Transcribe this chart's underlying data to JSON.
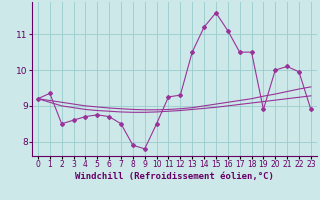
{
  "x": [
    0,
    1,
    2,
    3,
    4,
    5,
    6,
    7,
    8,
    9,
    10,
    11,
    12,
    13,
    14,
    15,
    16,
    17,
    18,
    19,
    20,
    21,
    22,
    23
  ],
  "y_line": [
    9.2,
    9.35,
    8.5,
    8.6,
    8.7,
    8.75,
    8.7,
    8.5,
    7.9,
    7.8,
    8.5,
    9.25,
    9.3,
    10.5,
    11.2,
    11.6,
    11.1,
    10.5,
    10.5,
    8.9,
    10.0,
    10.1,
    9.95,
    8.9
  ],
  "y_trend1": [
    9.2,
    9.15,
    9.1,
    9.05,
    9.0,
    8.97,
    8.94,
    8.92,
    8.9,
    8.89,
    8.89,
    8.9,
    8.92,
    8.95,
    9.0,
    9.05,
    9.1,
    9.15,
    9.2,
    9.27,
    9.33,
    9.4,
    9.47,
    9.53
  ],
  "y_trend2": [
    9.2,
    9.1,
    9.0,
    8.95,
    8.9,
    8.87,
    8.85,
    8.83,
    8.82,
    8.82,
    8.83,
    8.85,
    8.87,
    8.9,
    8.93,
    8.96,
    9.0,
    9.04,
    9.08,
    9.12,
    9.16,
    9.2,
    9.24,
    9.28
  ],
  "background_color": "#cce8e8",
  "line_color": "#993399",
  "grid_color": "#99cccc",
  "ylabel_values": [
    8,
    9,
    10,
    11
  ],
  "xlabel": "Windchill (Refroidissement éolien,°C)",
  "ylim": [
    7.6,
    11.9
  ],
  "xlim": [
    -0.5,
    23.5
  ],
  "tick_labels": [
    "0",
    "1",
    "2",
    "3",
    "4",
    "5",
    "6",
    "7",
    "8",
    "9",
    "10",
    "11",
    "12",
    "13",
    "14",
    "15",
    "16",
    "17",
    "18",
    "19",
    "20",
    "21",
    "22",
    "23"
  ],
  "font_color": "#660066",
  "xlabel_fontsize": 6.5,
  "tick_fontsize": 5.5,
  "ylabel_fontsize": 6.5
}
